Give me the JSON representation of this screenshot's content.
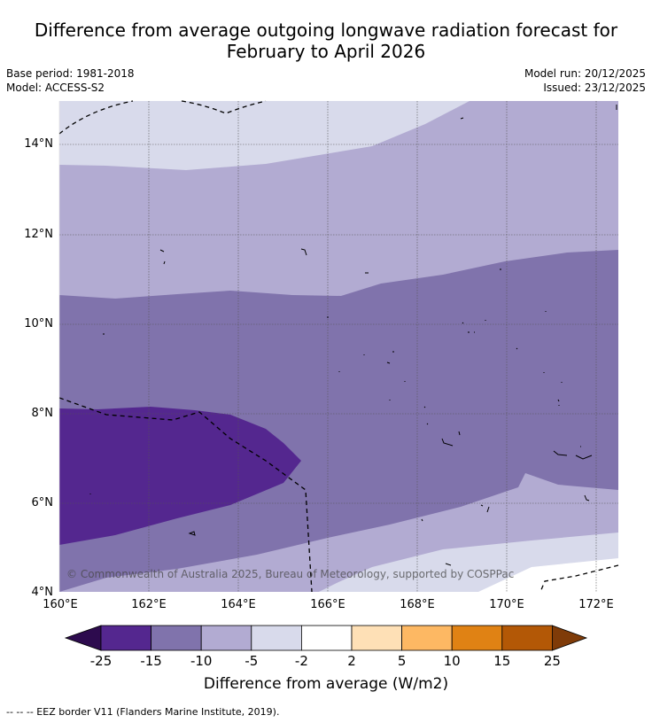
{
  "title_line1": "Difference from average outgoing longwave radiation forecast for",
  "title_line2": "February to April 2026",
  "meta_left": {
    "base_period": "Base period: 1981-2018",
    "model": "Model: ACCESS-S2"
  },
  "meta_right": {
    "model_run": "Model run: 20/12/2025",
    "issued": "Issued: 23/12/2025"
  },
  "map": {
    "lat_labels": [
      "14°N",
      "12°N",
      "10°N",
      "8°N",
      "6°N",
      "4°N"
    ],
    "lon_labels": [
      "160°E",
      "162°E",
      "164°E",
      "166°E",
      "168°E",
      "170°E",
      "172°E"
    ],
    "copyright": "© Commonwealth of Australia 2025, Bureau of Meteorology, supported by COSPPac"
  },
  "colorbar": {
    "title": "Difference from average (W/m2)",
    "tick_labels": [
      "-25",
      "-15",
      "-10",
      "-5",
      "-2",
      "2",
      "5",
      "10",
      "15",
      "25"
    ],
    "colors": [
      "#2d0b4e",
      "#54278f",
      "#8073ac",
      "#b2abd2",
      "#d8daeb",
      "#ffffff",
      "#fee0b6",
      "#fdb863",
      "#e08214",
      "#b35806",
      "#7f3b08"
    ]
  },
  "footer": "--  --  -- EEZ border V11 (Flanders Marine Institute, 2019)."
}
